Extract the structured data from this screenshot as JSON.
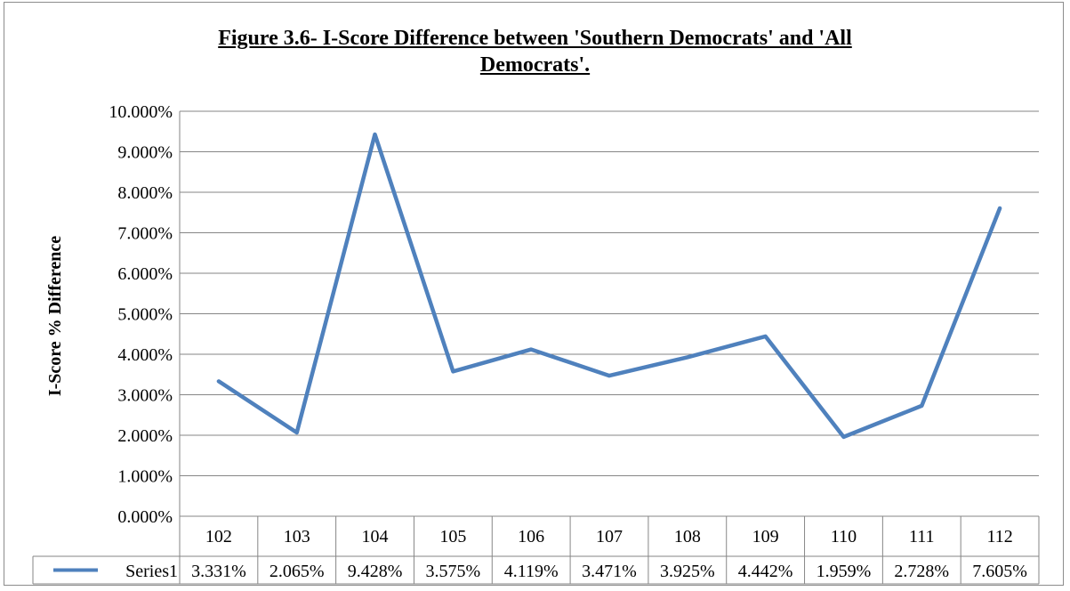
{
  "chart_data": {
    "type": "line",
    "title_line1": "Figure 3.6- I-Score Difference between 'Southern  Democrats' and 'All",
    "title_line2": "Democrats'.",
    "xlabel": "",
    "ylabel": "I-Score % Difference",
    "categories": [
      "102",
      "103",
      "104",
      "105",
      "106",
      "107",
      "108",
      "109",
      "110",
      "111",
      "112"
    ],
    "series": [
      {
        "name": "Series1",
        "values": [
          3.331,
          2.065,
          9.428,
          3.575,
          4.119,
          3.471,
          3.925,
          4.442,
          1.959,
          2.728,
          7.605
        ],
        "labels": [
          "3.331%",
          "2.065%",
          "9.428%",
          "3.575%",
          "4.119%",
          "3.471%",
          "3.925%",
          "4.442%",
          "1.959%",
          "2.728%",
          "7.605%"
        ],
        "color": "#4f81bd"
      }
    ],
    "ylim": [
      0,
      10
    ],
    "yticks": [
      "0.000%",
      "1.000%",
      "2.000%",
      "3.000%",
      "4.000%",
      "5.000%",
      "6.000%",
      "7.000%",
      "8.000%",
      "9.000%",
      "10.000%"
    ],
    "grid": true,
    "legend": "data-table",
    "gridColor": "#868686"
  }
}
